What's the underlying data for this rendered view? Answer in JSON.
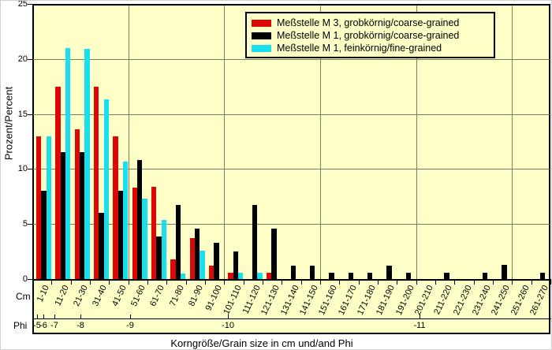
{
  "chart_data": {
    "type": "bar",
    "xlabel": "Korngröße/Grain size in cm und/and  Phi",
    "ylabel": "Prozent/Percent",
    "ylim": [
      0,
      25
    ],
    "y_ticks": [
      0,
      5,
      10,
      15,
      20,
      25
    ],
    "grid": true,
    "legend_position": "top-right-inside",
    "plot_bg_color": "#ffffc8",
    "gridline_color": "#7d7d66",
    "cm_row_label": "Cm",
    "phi_row_label": "Phi",
    "phi_ticks": [
      "-5",
      "-6",
      "-7",
      "-8",
      "-9",
      "-10",
      "-11"
    ],
    "categories": [
      "1-10",
      "11-20",
      "21-30",
      "31-40",
      "41-50",
      "51-60",
      "61-70",
      "71-80",
      "81-90",
      "91-100",
      "101-110",
      "111-120",
      "121-130",
      "131-140",
      "141-150",
      "151-160",
      "161-170",
      "171-180",
      "181-190",
      "191-200",
      "201-210",
      "211-220",
      "221-230",
      "231-240",
      "241-250",
      "251-260",
      "261-270"
    ],
    "vertical_gridlines_cm": [
      50,
      100,
      150,
      200,
      250
    ],
    "series": [
      {
        "name": "Meßstelle M 3, grobkörnig/coarse-grained",
        "color": "#dd0806",
        "values": [
          13.0,
          17.5,
          13.6,
          17.5,
          13.0,
          8.3,
          8.4,
          1.8,
          3.7,
          1.2,
          0.6,
          0,
          0.6,
          0,
          0,
          0,
          0,
          0,
          0,
          0,
          0,
          0,
          0,
          0,
          0,
          0,
          0
        ]
      },
      {
        "name": "Meßstelle M 1, grobkörnig/coarse-grained",
        "color": "#000000",
        "values": [
          8.0,
          11.5,
          11.5,
          6.0,
          8.0,
          10.8,
          3.9,
          6.7,
          4.6,
          3.3,
          2.5,
          6.7,
          4.6,
          1.2,
          1.2,
          0.6,
          0.6,
          0.6,
          1.2,
          0.6,
          0,
          0.6,
          0,
          0.6,
          1.3,
          0,
          0.6
        ]
      },
      {
        "name": "Meßstelle M 1, feinkörnig/fine-grained",
        "color": "#16dfee",
        "values": [
          13.0,
          21.0,
          20.9,
          16.3,
          10.7,
          7.3,
          5.4,
          0.5,
          2.6,
          0,
          0.6,
          0.6,
          0,
          0,
          0,
          0,
          0,
          0,
          0,
          0,
          0,
          0,
          0,
          0,
          0,
          0,
          0
        ]
      }
    ]
  }
}
